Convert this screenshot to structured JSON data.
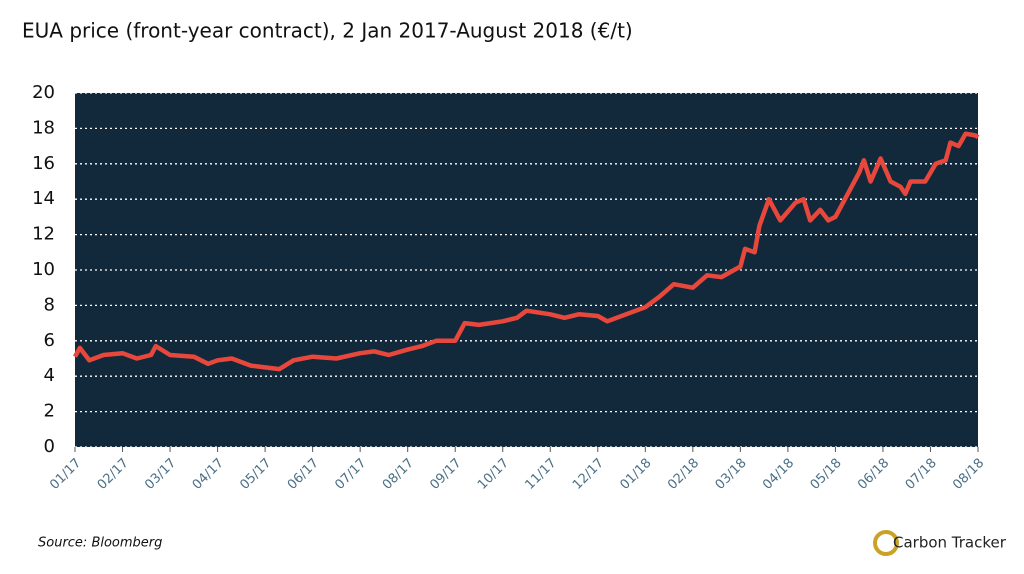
{
  "chart_data": {
    "type": "line",
    "title": "EUA price (front-year contract), 2 Jan 2017-August 2018 (€/t)",
    "source": "Source: Bloomberg",
    "logo": "Carbon Tracker",
    "color": "#e8473c",
    "background": "#11293b",
    "grid": true,
    "x": [
      0,
      0.1,
      0.3,
      0.6,
      1,
      1.3,
      1.6,
      1.7,
      2,
      2.5,
      2.8,
      3,
      3.3,
      3.7,
      4,
      4.3,
      4.6,
      5,
      5.5,
      6,
      6.3,
      6.6,
      7,
      7.3,
      7.6,
      8,
      8.2,
      8.5,
      9,
      9.3,
      9.5,
      10,
      10.3,
      10.6,
      11,
      11.2,
      12,
      12.3,
      12.6,
      13,
      13.3,
      13.6,
      14,
      14.1,
      14.3,
      14.4,
      14.6,
      14.84,
      15.16,
      15.33,
      15.47,
      15.68,
      15.85,
      16,
      16.2,
      16.5,
      16.6,
      16.74,
      16.95,
      17.16,
      17.37,
      17.47,
      17.58,
      17.89,
      18.11,
      18.32,
      18.42,
      18.59,
      18.74,
      18.95,
      19
    ],
    "values": [
      5.1,
      5.6,
      4.9,
      5.2,
      5.3,
      5.0,
      5.2,
      5.7,
      5.2,
      5.1,
      4.7,
      4.9,
      5.0,
      4.6,
      4.5,
      4.4,
      4.9,
      5.1,
      5.0,
      5.3,
      5.4,
      5.2,
      5.5,
      5.7,
      6.0,
      6.0,
      7.0,
      6.9,
      7.1,
      7.3,
      7.7,
      7.5,
      7.3,
      7.5,
      7.4,
      7.1,
      7.9,
      8.5,
      9.2,
      9.0,
      9.7,
      9.6,
      10.2,
      11.2,
      11.0,
      12.5,
      14.0,
      12.8,
      13.8,
      14.0,
      12.8,
      13.4,
      12.8,
      13.0,
      14.0,
      15.5,
      16.2,
      15.0,
      16.3,
      15.0,
      14.7,
      14.3,
      15.0,
      15.0,
      16.0,
      16.2,
      17.2,
      17.0,
      17.7,
      17.6,
      17.5
    ],
    "xlim": [
      0,
      19
    ],
    "xticks": [
      {
        "value": 0,
        "label": "01/17"
      },
      {
        "value": 1,
        "label": "02/17"
      },
      {
        "value": 2,
        "label": "03/17"
      },
      {
        "value": 3,
        "label": "04/17"
      },
      {
        "value": 4,
        "label": "05/17"
      },
      {
        "value": 5,
        "label": "06/17"
      },
      {
        "value": 6,
        "label": "07/17"
      },
      {
        "value": 7,
        "label": "08/17"
      },
      {
        "value": 8,
        "label": "09/17"
      },
      {
        "value": 9,
        "label": "10/17"
      },
      {
        "value": 10,
        "label": "11/17"
      },
      {
        "value": 11,
        "label": "12/17"
      },
      {
        "value": 12,
        "label": "01/18"
      },
      {
        "value": 13,
        "label": "02/18"
      },
      {
        "value": 14,
        "label": "03/18"
      },
      {
        "value": 15,
        "label": "04/18"
      },
      {
        "value": 16,
        "label": "05/18"
      },
      {
        "value": 17,
        "label": "06/18"
      },
      {
        "value": 18,
        "label": "07/18"
      },
      {
        "value": 19,
        "label": "08/18"
      }
    ],
    "ylim": [
      0,
      20
    ],
    "yticks": [
      0,
      2,
      4,
      6,
      8,
      10,
      12,
      14,
      16,
      18,
      20
    ]
  }
}
